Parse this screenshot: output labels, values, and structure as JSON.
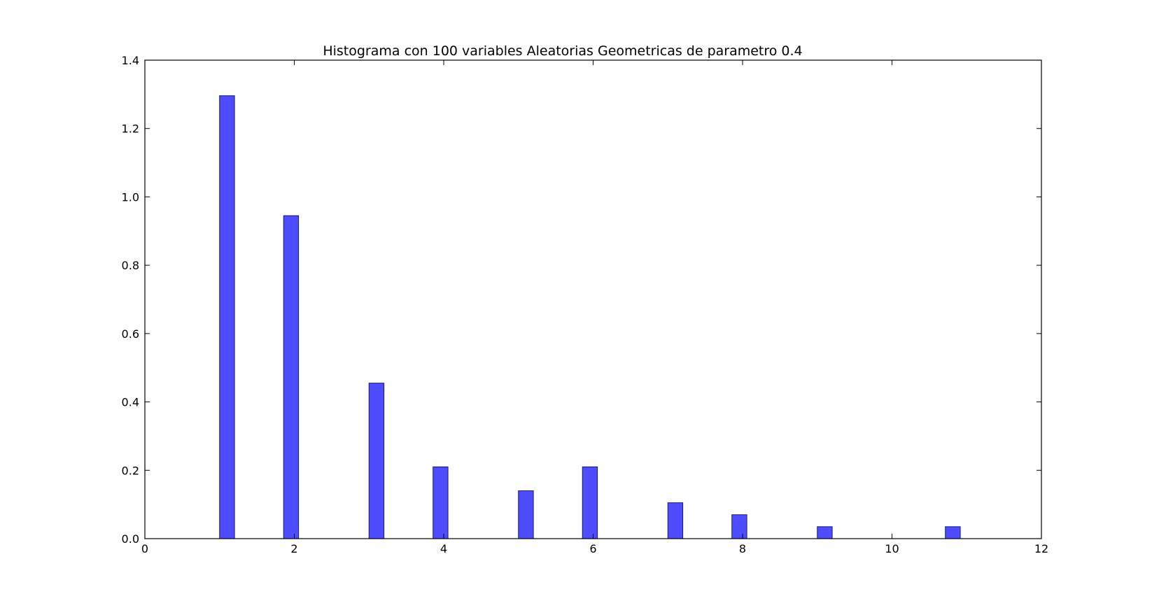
{
  "chart_data": {
    "type": "bar",
    "title": "Histograma con 100 variables Aleatorias Geometricas de parametro 0.4",
    "xlabel": "",
    "ylabel": "",
    "xlim": [
      0,
      12
    ],
    "ylim": [
      0,
      1.4
    ],
    "xticks": [
      0,
      2,
      4,
      6,
      8,
      10,
      12
    ],
    "xtick_labels": [
      "0",
      "2",
      "4",
      "6",
      "8",
      "10",
      "12"
    ],
    "yticks": [
      0.0,
      0.2,
      0.4,
      0.6,
      0.8,
      1.0,
      1.2,
      1.4
    ],
    "ytick_labels": [
      "0.0",
      "0.2",
      "0.4",
      "0.6",
      "0.8",
      "1.0",
      "1.2",
      "1.4"
    ],
    "bar_width": 0.2,
    "bins": [
      {
        "x": 1.0,
        "value": 1.296
      },
      {
        "x": 1.857,
        "value": 0.945
      },
      {
        "x": 3.0,
        "value": 0.455
      },
      {
        "x": 3.857,
        "value": 0.21
      },
      {
        "x": 5.0,
        "value": 0.14
      },
      {
        "x": 5.857,
        "value": 0.21
      },
      {
        "x": 7.0,
        "value": 0.105
      },
      {
        "x": 7.857,
        "value": 0.07
      },
      {
        "x": 9.0,
        "value": 0.035
      },
      {
        "x": 10.714,
        "value": 0.035
      }
    ],
    "grid": false,
    "colors": {
      "bar_fill": "#4d4dff",
      "bar_edge": "#1a1a66",
      "axis": "#000000"
    }
  }
}
